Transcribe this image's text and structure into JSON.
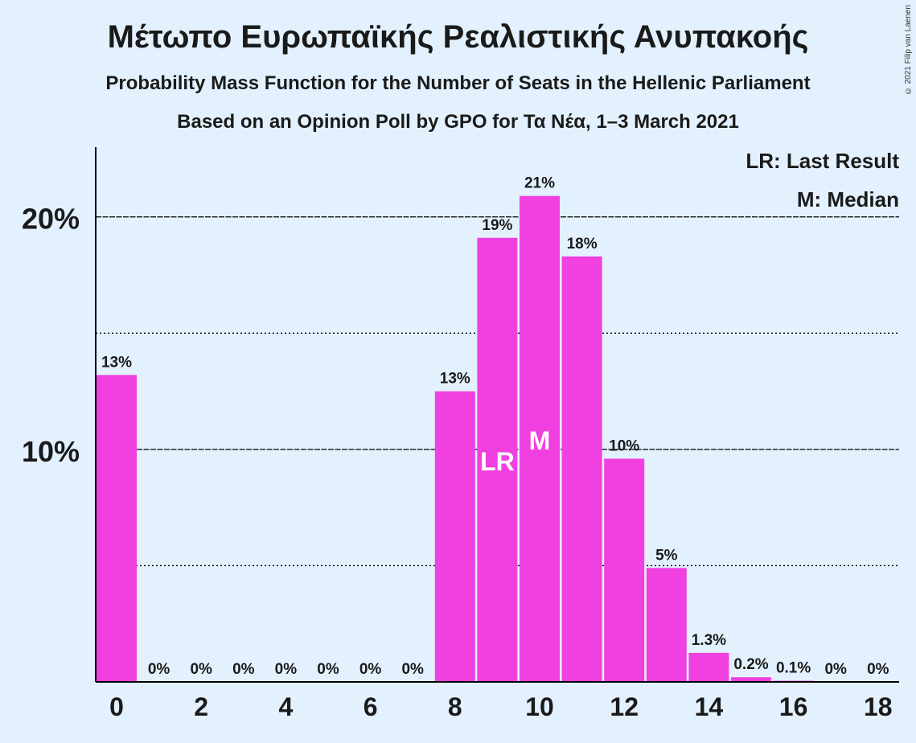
{
  "chart_data": {
    "type": "bar",
    "title": "Μέτωπο Ευρωπαϊκής Ρεαλιστικής Ανυπακοής",
    "subtitle1": "Probability Mass Function for the Number of Seats in the Hellenic Parliament",
    "subtitle2": "Based on an Opinion Poll by GPO for Τα Νέα, 1–3 March 2021",
    "copyright": "© 2021 Filip van Laenen",
    "categories": [
      0,
      1,
      2,
      3,
      4,
      5,
      6,
      7,
      8,
      9,
      10,
      11,
      12,
      13,
      14,
      15,
      16,
      17,
      18
    ],
    "values": [
      13.2,
      0,
      0,
      0,
      0,
      0,
      0,
      0,
      12.5,
      19.1,
      20.9,
      18.3,
      9.6,
      4.9,
      1.25,
      0.2,
      0.05,
      0,
      0
    ],
    "value_labels": [
      "13%",
      "0%",
      "0%",
      "0%",
      "0%",
      "0%",
      "0%",
      "0%",
      "13%",
      "19%",
      "21%",
      "18%",
      "10%",
      "5%",
      "1.3%",
      "0.2%",
      "0.1%",
      "0%",
      "0%"
    ],
    "x_tick_labels": [
      "0",
      "2",
      "4",
      "6",
      "8",
      "10",
      "12",
      "14",
      "16",
      "18"
    ],
    "x_tick_values": [
      0,
      2,
      4,
      6,
      8,
      10,
      12,
      14,
      16,
      18
    ],
    "y_ticks": [
      10,
      20
    ],
    "y_tick_labels": [
      "10%",
      "20%"
    ],
    "y_minor_ticks": [
      5,
      15
    ],
    "ylim": [
      0,
      23
    ],
    "last_result_seat": 9,
    "median_seat": 10,
    "last_result_marker": "LR",
    "median_marker": "M",
    "legend": [
      "LR: Last Result",
      "M: Median"
    ],
    "legend_position": "top-right",
    "bar_color": "#f040e0",
    "background_color": "#e3f1fe"
  }
}
